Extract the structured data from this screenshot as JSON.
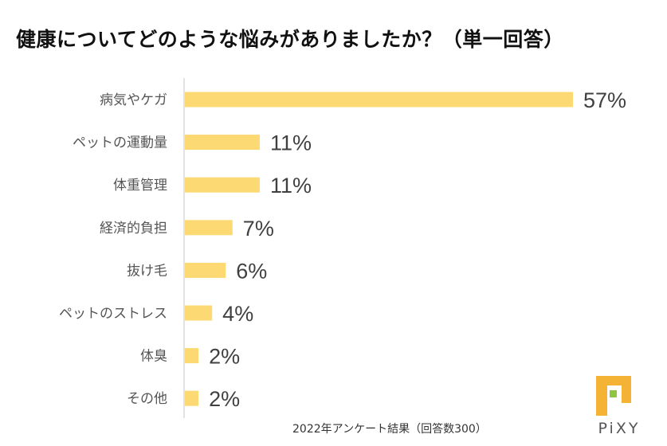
{
  "chart_data": {
    "type": "bar",
    "orientation": "horizontal",
    "title": "健康についてどのような悩みがありましたか？（単一回答）",
    "categories": [
      "病気やケガ",
      "ペットの運動量",
      "体重管理",
      "経済的負担",
      "抜け毛",
      "ペットのストレス",
      "体臭",
      "その他"
    ],
    "values": [
      57,
      11,
      11,
      7,
      6,
      4,
      2,
      2
    ],
    "data_labels": [
      "57%",
      "11%",
      "11%",
      "7%",
      "6%",
      "4%",
      "2%",
      "2%"
    ],
    "unit": "%",
    "xlim": [
      0,
      57
    ],
    "grid": false,
    "bar_color": "#FDD973"
  },
  "footer": "2022年アンケート結果（回答数300）",
  "logo": {
    "text": "PiXY",
    "colors": {
      "frame": "#F5B335",
      "square": "#8DC63F",
      "text": "#555555"
    }
  }
}
